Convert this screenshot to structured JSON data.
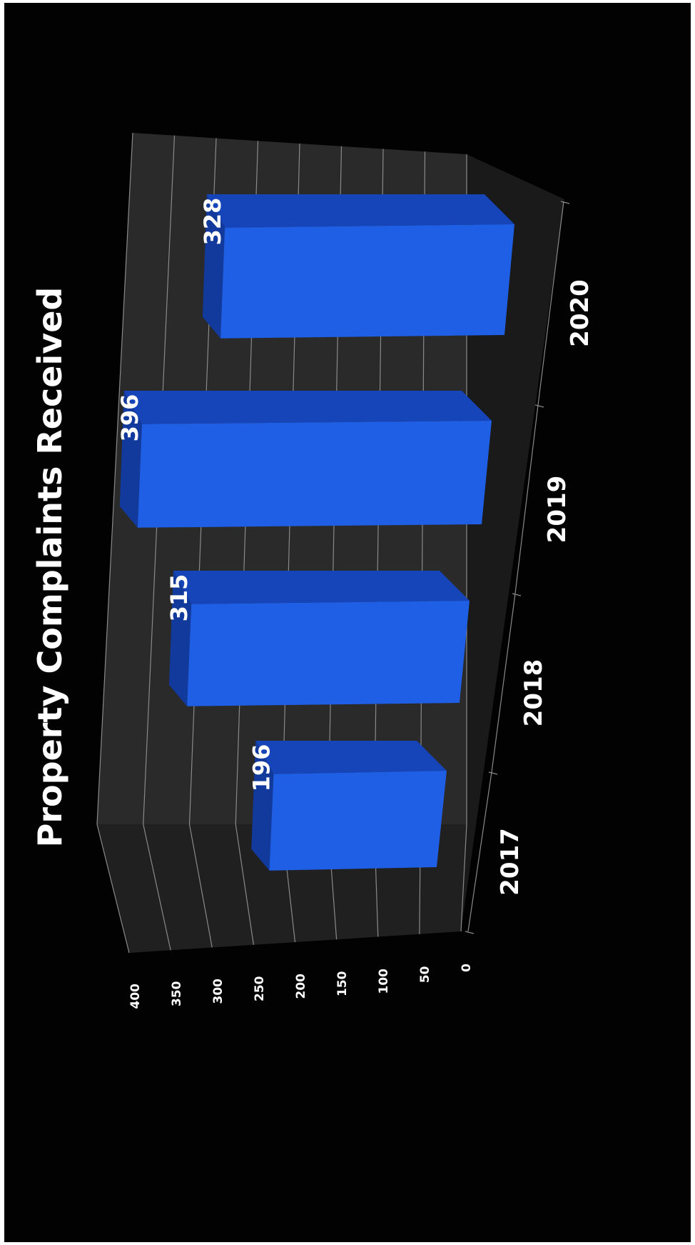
{
  "chart_data": {
    "type": "bar",
    "title": "Property Complaints Received",
    "categories": [
      "2017",
      "2018",
      "2019",
      "2020"
    ],
    "values": [
      196,
      315,
      396,
      328
    ],
    "ylim": [
      0,
      400
    ],
    "y_ticks": [
      "0",
      "50",
      "100",
      "150",
      "200",
      "250",
      "300",
      "350",
      "400"
    ],
    "grid": true,
    "legend": "none",
    "orientation": "rotated-90-clockwise",
    "style": "3d-column",
    "colors": {
      "background": "#020202",
      "bar_front": "#1f5fe6",
      "bar_top": "#1545b8",
      "bar_side": "#113a9c",
      "grid": "#8a8a8a",
      "back_wall": "#2a2a2a",
      "floor": "#1a1a1a",
      "text": "#ffffff"
    }
  }
}
